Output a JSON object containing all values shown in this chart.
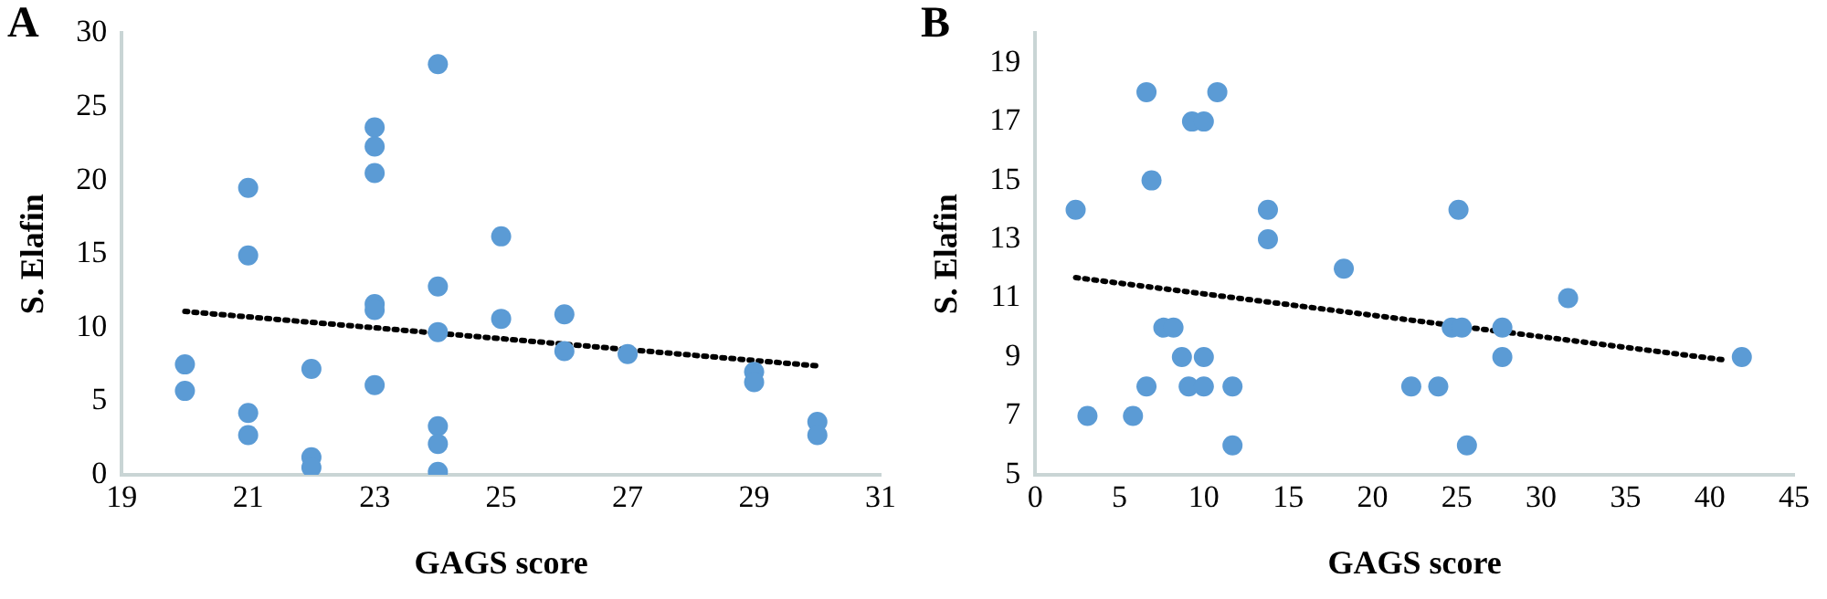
{
  "chart_data": [
    {
      "type": "scatter",
      "title": "A",
      "xlabel": "GAGS score",
      "ylabel": "S. Elafin",
      "xlim": [
        19,
        31
      ],
      "xticks": [
        19,
        21,
        23,
        25,
        27,
        29,
        31
      ],
      "ylim": [
        0,
        30
      ],
      "yticks": [
        0,
        5,
        10,
        15,
        20,
        25,
        30
      ],
      "grid": false,
      "legend": false,
      "marker": "circle",
      "series": [
        {
          "color": "#5b9bd5",
          "x": [
            20,
            20,
            21,
            21,
            21,
            21,
            22,
            22,
            22,
            23,
            23,
            23,
            23,
            23,
            23,
            24,
            24,
            24,
            24,
            24,
            24,
            25,
            25,
            26,
            26,
            27,
            29,
            29,
            30,
            30
          ],
          "values": [
            7.5,
            5.7,
            19.5,
            14.9,
            4.2,
            2.7,
            7.2,
            1.2,
            0.5,
            23.6,
            22.3,
            20.5,
            11.6,
            11.2,
            6.1,
            27.9,
            12.8,
            9.7,
            3.3,
            2.1,
            0.2,
            16.2,
            10.6,
            10.9,
            8.4,
            8.2,
            7.0,
            6.3,
            3.6,
            2.7
          ]
        },
        {
          "type": "line",
          "color": "#000000",
          "line_style": "dotted",
          "marker": "none",
          "x": [
            20,
            30
          ],
          "values": [
            11.1,
            7.4
          ]
        }
      ]
    },
    {
      "type": "scatter",
      "title": "B",
      "xlabel": "GAGS score",
      "ylabel": "S. Elafin",
      "xlim": [
        0,
        45
      ],
      "xticks": [
        0,
        5,
        10,
        15,
        20,
        25,
        30,
        35,
        40,
        45
      ],
      "ylim": [
        5,
        20
      ],
      "yticks": [
        5,
        7,
        9,
        11,
        13,
        15,
        17,
        19
      ],
      "grid": false,
      "legend": false,
      "marker": "circle",
      "series": [
        {
          "color": "#5b9bd5",
          "x": [
            2.4,
            3.1,
            5.8,
            6.6,
            6.9,
            6.6,
            7.6,
            8.2,
            8.7,
            9.1,
            9.3,
            10.0,
            10.0,
            10.0,
            10.8,
            11.7,
            11.7,
            13.8,
            13.8,
            18.3,
            22.3,
            23.9,
            25.1,
            24.7,
            25.3,
            25.6,
            27.7,
            27.7,
            31.6,
            41.9
          ],
          "values": [
            14,
            7,
            7,
            18,
            15,
            8,
            10,
            10,
            9,
            8,
            17,
            17,
            9,
            8,
            18,
            8,
            6,
            14,
            13,
            12,
            8,
            8,
            14,
            10,
            10,
            6,
            10,
            9,
            11,
            9
          ]
        },
        {
          "type": "line",
          "color": "#000000",
          "line_style": "dotted",
          "marker": "none",
          "x": [
            2.4,
            40.9
          ],
          "values": [
            11.7,
            8.9
          ]
        }
      ]
    }
  ]
}
